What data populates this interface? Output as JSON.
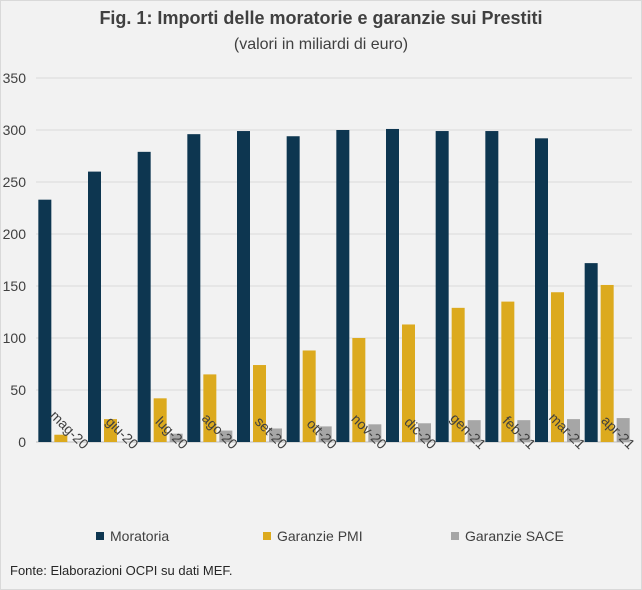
{
  "title": "Fig. 1: Importi delle moratorie e garanzie sui Prestiti",
  "subtitle": "(valori in miliardi di euro)",
  "source": "Fonte: Elaborazioni OCPI su dati MEF.",
  "colors": {
    "Moratoria": "#0d3650",
    "Garanzie PMI": "#dcaa1e",
    "Garanzie SACE": "#a6a6a6",
    "grid": "#d9d9d9",
    "text": "#404040"
  },
  "chart_data": {
    "type": "bar",
    "categories": [
      "mag-20",
      "giu-20",
      "lug-20",
      "ago-20",
      "set-20",
      "ott-20",
      "nov-20",
      "dic-20",
      "gen-21",
      "feb-21",
      "mar-21",
      "apr-21"
    ],
    "series": [
      {
        "name": "Moratoria",
        "values": [
          233,
          260,
          279,
          296,
          299,
          294,
          300,
          301,
          299,
          299,
          292,
          172
        ]
      },
      {
        "name": "Garanzie PMI",
        "values": [
          7,
          22,
          42,
          65,
          74,
          88,
          100,
          113,
          129,
          135,
          144,
          151
        ]
      },
      {
        "name": "Garanzie SACE",
        "values": [
          0,
          0,
          8,
          11,
          13,
          15,
          17,
          18,
          21,
          21,
          22,
          23
        ]
      }
    ],
    "ylim": [
      0,
      350
    ],
    "yticks": [
      0,
      50,
      100,
      150,
      200,
      250,
      300,
      350
    ],
    "grid": true,
    "legend": "bottom",
    "xlabel": "",
    "ylabel": ""
  }
}
